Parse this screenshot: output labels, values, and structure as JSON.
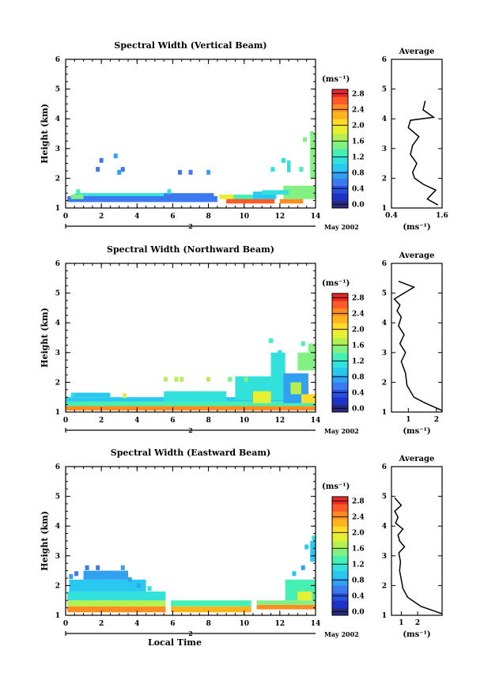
{
  "chart_data": [
    {
      "type": "heatmap",
      "title": "Spectral Width (Vertical Beam)",
      "xlabel": "",
      "ylabel": "Height (km)",
      "xlim": [
        0,
        14
      ],
      "ylim": [
        1,
        6
      ],
      "x_ticks": [
        "0",
        "2",
        "4",
        "6",
        "8",
        "10",
        "12",
        "14"
      ],
      "y_ticks": [
        "1",
        "2",
        "3",
        "4",
        "5",
        "6"
      ],
      "date_day": "2",
      "date_label": "May 2002",
      "colorbar": {
        "unit": "(ms⁻¹)",
        "ticks": [
          "0.0",
          "0.4",
          "0.8",
          "1.2",
          "1.6",
          "2.0",
          "2.4",
          "2.8"
        ],
        "range": [
          0,
          3.0
        ]
      },
      "regions": [
        {
          "x0": 0.1,
          "x1": 8.5,
          "y0": 1.2,
          "y1": 1.4,
          "v": 0.7
        },
        {
          "x0": 0.5,
          "x1": 5.5,
          "y0": 1.4,
          "y1": 1.5,
          "v": 1.2
        },
        {
          "x0": 0.3,
          "x1": 1.0,
          "y0": 1.3,
          "y1": 1.45,
          "v": 1.5
        },
        {
          "x0": 5.5,
          "x1": 8.3,
          "y0": 1.25,
          "y1": 1.5,
          "v": 0.7
        },
        {
          "x0": 8.6,
          "x1": 9.4,
          "y0": 1.3,
          "y1": 1.45,
          "v": 2.0
        },
        {
          "x0": 9.4,
          "x1": 10.6,
          "y0": 1.2,
          "y1": 1.45,
          "v": 1.4
        },
        {
          "x0": 9.0,
          "x1": 11.7,
          "y0": 1.15,
          "y1": 1.3,
          "v": 2.7
        },
        {
          "x0": 10.5,
          "x1": 11.8,
          "y0": 1.3,
          "y1": 1.55,
          "v": 1.1
        },
        {
          "x0": 12.0,
          "x1": 13.3,
          "y0": 1.15,
          "y1": 1.3,
          "v": 2.6
        },
        {
          "x0": 12.2,
          "x1": 14.0,
          "y0": 1.3,
          "y1": 1.75,
          "v": 1.5
        },
        {
          "x0": 11.0,
          "x1": 12.5,
          "y0": 1.45,
          "y1": 1.6,
          "v": 1.3
        },
        {
          "x0": 13.7,
          "x1": 14.0,
          "y0": 2.0,
          "y1": 3.5,
          "v": 1.6
        },
        {
          "x0": 12.4,
          "x1": 12.6,
          "y0": 2.2,
          "y1": 2.6,
          "v": 1.3
        }
      ],
      "specks": [
        {
          "x": 1.8,
          "y": 2.3,
          "v": 0.7
        },
        {
          "x": 2.0,
          "y": 2.6,
          "v": 0.7
        },
        {
          "x": 2.8,
          "y": 2.75,
          "v": 0.8
        },
        {
          "x": 3.0,
          "y": 2.2,
          "v": 0.8
        },
        {
          "x": 3.2,
          "y": 2.3,
          "v": 0.7
        },
        {
          "x": 6.4,
          "y": 2.2,
          "v": 0.7
        },
        {
          "x": 7.0,
          "y": 2.2,
          "v": 0.7
        },
        {
          "x": 8.0,
          "y": 2.2,
          "v": 0.8
        },
        {
          "x": 11.6,
          "y": 2.3,
          "v": 1.2
        },
        {
          "x": 12.2,
          "y": 2.6,
          "v": 1.3
        },
        {
          "x": 13.2,
          "y": 2.3,
          "v": 1.4
        },
        {
          "x": 13.4,
          "y": 3.3,
          "v": 1.5
        },
        {
          "x": 13.8,
          "y": 3.5,
          "v": 1.6
        },
        {
          "x": 0.7,
          "y": 1.55,
          "v": 1.4
        },
        {
          "x": 5.8,
          "y": 1.55,
          "v": 1.2
        }
      ],
      "average": {
        "title": "Average",
        "xlabel": "(ms⁻¹)",
        "x_ticks": [
          "0.4",
          "1.6"
        ],
        "xlim": [
          0.4,
          1.6
        ],
        "profile": [
          {
            "x": 1.5,
            "y": 1.1
          },
          {
            "x": 1.25,
            "y": 1.3
          },
          {
            "x": 1.45,
            "y": 1.6
          },
          {
            "x": 1.15,
            "y": 1.8
          },
          {
            "x": 0.95,
            "y": 2.0
          },
          {
            "x": 0.9,
            "y": 2.2
          },
          {
            "x": 1.0,
            "y": 2.5
          },
          {
            "x": 0.85,
            "y": 2.8
          },
          {
            "x": 0.9,
            "y": 3.1
          },
          {
            "x": 1.05,
            "y": 3.4
          },
          {
            "x": 0.8,
            "y": 3.7
          },
          {
            "x": 0.85,
            "y": 3.95
          },
          {
            "x": 1.4,
            "y": 4.05
          },
          {
            "x": 1.15,
            "y": 4.3
          },
          {
            "x": 1.2,
            "y": 4.6
          }
        ]
      }
    },
    {
      "type": "heatmap",
      "title": "Spectral Width (Northward Beam)",
      "xlabel": "",
      "ylabel": "Height (km)",
      "xlim": [
        0,
        14
      ],
      "ylim": [
        1,
        6
      ],
      "x_ticks": [
        "0",
        "2",
        "4",
        "6",
        "8",
        "10",
        "12",
        "14"
      ],
      "y_ticks": [
        "1",
        "2",
        "3",
        "4",
        "5",
        "6"
      ],
      "date_day": "2",
      "date_label": "May 2002",
      "colorbar": {
        "unit": "(ms⁻¹)",
        "ticks": [
          "0.0",
          "0.4",
          "0.8",
          "1.2",
          "1.6",
          "2.0",
          "2.4",
          "2.8"
        ],
        "range": [
          0,
          3.0
        ]
      },
      "regions": [
        {
          "x0": 0.0,
          "x1": 14.0,
          "y0": 1.2,
          "y1": 1.35,
          "v": 1.4
        },
        {
          "x0": 0.0,
          "x1": 14.0,
          "y0": 1.05,
          "y1": 1.2,
          "v": 2.6
        },
        {
          "x0": 0.0,
          "x1": 14.0,
          "y0": 1.35,
          "y1": 1.5,
          "v": 1.1
        },
        {
          "x0": 0.3,
          "x1": 2.5,
          "y0": 1.5,
          "y1": 1.65,
          "v": 1.0
        },
        {
          "x0": 5.5,
          "x1": 9.0,
          "y0": 1.35,
          "y1": 1.7,
          "v": 1.2
        },
        {
          "x0": 9.5,
          "x1": 12.5,
          "y0": 1.4,
          "y1": 2.2,
          "v": 1.3
        },
        {
          "x0": 10.5,
          "x1": 11.5,
          "y0": 1.3,
          "y1": 1.7,
          "v": 1.9
        },
        {
          "x0": 11.5,
          "x1": 12.3,
          "y0": 1.8,
          "y1": 3.0,
          "v": 1.2
        },
        {
          "x0": 12.2,
          "x1": 13.6,
          "y0": 1.3,
          "y1": 2.3,
          "v": 0.8
        },
        {
          "x0": 12.6,
          "x1": 13.2,
          "y0": 1.6,
          "y1": 2.0,
          "v": 1.8
        },
        {
          "x0": 13.2,
          "x1": 14.0,
          "y0": 1.3,
          "y1": 1.6,
          "v": 2.2
        },
        {
          "x0": 13.0,
          "x1": 14.0,
          "y0": 2.4,
          "y1": 3.0,
          "v": 1.5
        },
        {
          "x0": 13.6,
          "x1": 14.0,
          "y0": 3.0,
          "y1": 3.3,
          "v": 1.6
        }
      ],
      "specks": [
        {
          "x": 5.6,
          "y": 2.1,
          "v": 1.8
        },
        {
          "x": 6.2,
          "y": 2.1,
          "v": 1.8
        },
        {
          "x": 6.5,
          "y": 2.1,
          "v": 1.7
        },
        {
          "x": 8.0,
          "y": 2.1,
          "v": 1.7
        },
        {
          "x": 9.2,
          "y": 2.1,
          "v": 1.6
        },
        {
          "x": 10.1,
          "y": 2.1,
          "v": 1.5
        },
        {
          "x": 11.5,
          "y": 3.4,
          "v": 1.4
        },
        {
          "x": 12.0,
          "y": 3.0,
          "v": 1.3
        },
        {
          "x": 13.3,
          "y": 3.3,
          "v": 1.4
        },
        {
          "x": 0.4,
          "y": 1.55,
          "v": 1.3
        },
        {
          "x": 3.3,
          "y": 1.55,
          "v": 2.0
        }
      ],
      "average": {
        "title": "Average",
        "xlabel": "(ms⁻¹)",
        "x_ticks": [
          "1",
          "2"
        ],
        "xlim": [
          0.4,
          2.2
        ],
        "profile": [
          {
            "x": 2.2,
            "y": 1.05
          },
          {
            "x": 1.6,
            "y": 1.3
          },
          {
            "x": 1.2,
            "y": 1.5
          },
          {
            "x": 0.95,
            "y": 1.9
          },
          {
            "x": 0.9,
            "y": 2.3
          },
          {
            "x": 0.75,
            "y": 2.7
          },
          {
            "x": 0.9,
            "y": 3.0
          },
          {
            "x": 0.7,
            "y": 3.3
          },
          {
            "x": 0.85,
            "y": 3.6
          },
          {
            "x": 0.65,
            "y": 3.9
          },
          {
            "x": 0.75,
            "y": 4.2
          },
          {
            "x": 0.6,
            "y": 4.4
          },
          {
            "x": 0.7,
            "y": 4.6
          },
          {
            "x": 0.5,
            "y": 4.8
          },
          {
            "x": 1.2,
            "y": 5.2
          },
          {
            "x": 0.65,
            "y": 5.4
          }
        ]
      }
    },
    {
      "type": "heatmap",
      "title": "Spectral Width (Eastward Beam)",
      "xlabel": "Local Time",
      "ylabel": "Height (km)",
      "xlim": [
        0,
        14
      ],
      "ylim": [
        1,
        6
      ],
      "x_ticks": [
        "0",
        "2",
        "4",
        "6",
        "8",
        "10",
        "12",
        "14"
      ],
      "y_ticks": [
        "1",
        "2",
        "3",
        "4",
        "5",
        "6"
      ],
      "date_day": "2",
      "date_label": "May 2002",
      "colorbar": {
        "unit": "(ms⁻¹)",
        "ticks": [
          "0.0",
          "0.4",
          "0.8",
          "1.2",
          "1.6",
          "2.0",
          "2.4",
          "2.8"
        ],
        "range": [
          0,
          3.0
        ]
      },
      "regions": [
        {
          "x0": 0.1,
          "x1": 5.6,
          "y0": 1.1,
          "y1": 1.3,
          "v": 2.6
        },
        {
          "x0": 0.1,
          "x1": 5.6,
          "y0": 1.3,
          "y1": 1.5,
          "v": 1.7
        },
        {
          "x0": 0.1,
          "x1": 5.6,
          "y0": 1.5,
          "y1": 1.8,
          "v": 1.3
        },
        {
          "x0": 0.2,
          "x1": 4.5,
          "y0": 1.8,
          "y1": 2.2,
          "v": 1.0
        },
        {
          "x0": 1.0,
          "x1": 3.5,
          "y0": 2.2,
          "y1": 2.5,
          "v": 0.8
        },
        {
          "x0": 5.9,
          "x1": 10.4,
          "y0": 1.1,
          "y1": 1.3,
          "v": 2.4
        },
        {
          "x0": 5.9,
          "x1": 10.4,
          "y0": 1.3,
          "y1": 1.5,
          "v": 1.4
        },
        {
          "x0": 10.7,
          "x1": 14.0,
          "y0": 1.2,
          "y1": 1.35,
          "v": 2.5
        },
        {
          "x0": 10.7,
          "x1": 14.0,
          "y0": 1.35,
          "y1": 1.5,
          "v": 1.5
        },
        {
          "x0": 12.3,
          "x1": 14.0,
          "y0": 1.5,
          "y1": 2.2,
          "v": 1.4
        },
        {
          "x0": 13.0,
          "x1": 13.8,
          "y0": 1.5,
          "y1": 1.8,
          "v": 2.0
        },
        {
          "x0": 13.7,
          "x1": 14.0,
          "y0": 2.8,
          "y1": 3.5,
          "v": 1.0
        }
      ],
      "specks": [
        {
          "x": 0.3,
          "y": 2.3,
          "v": 0.8
        },
        {
          "x": 0.6,
          "y": 2.4,
          "v": 0.7
        },
        {
          "x": 1.2,
          "y": 2.6,
          "v": 0.7
        },
        {
          "x": 1.8,
          "y": 2.6,
          "v": 0.7
        },
        {
          "x": 3.2,
          "y": 2.6,
          "v": 0.8
        },
        {
          "x": 3.6,
          "y": 2.2,
          "v": 0.8
        },
        {
          "x": 4.1,
          "y": 2.0,
          "v": 0.9
        },
        {
          "x": 4.7,
          "y": 1.9,
          "v": 1.2
        },
        {
          "x": 12.8,
          "y": 2.4,
          "v": 1.1
        },
        {
          "x": 13.3,
          "y": 2.6,
          "v": 0.9
        },
        {
          "x": 13.5,
          "y": 3.3,
          "v": 1.0
        },
        {
          "x": 13.9,
          "y": 3.6,
          "v": 1.2
        }
      ],
      "average": {
        "title": "Average",
        "xlabel": "(ms⁻¹)",
        "x_ticks": [
          "1",
          "2"
        ],
        "xlim": [
          0.4,
          3.5
        ],
        "profile": [
          {
            "x": 3.5,
            "y": 1.05
          },
          {
            "x": 2.2,
            "y": 1.3
          },
          {
            "x": 1.4,
            "y": 1.6
          },
          {
            "x": 1.1,
            "y": 1.9
          },
          {
            "x": 1.0,
            "y": 2.2
          },
          {
            "x": 0.9,
            "y": 2.5
          },
          {
            "x": 0.95,
            "y": 2.8
          },
          {
            "x": 0.85,
            "y": 3.1
          },
          {
            "x": 1.2,
            "y": 3.3
          },
          {
            "x": 0.9,
            "y": 3.5
          },
          {
            "x": 0.8,
            "y": 3.7
          },
          {
            "x": 1.1,
            "y": 3.9
          },
          {
            "x": 0.65,
            "y": 4.1
          },
          {
            "x": 0.8,
            "y": 4.3
          },
          {
            "x": 0.6,
            "y": 4.5
          },
          {
            "x": 1.0,
            "y": 4.7
          },
          {
            "x": 0.6,
            "y": 4.95
          }
        ]
      }
    }
  ]
}
